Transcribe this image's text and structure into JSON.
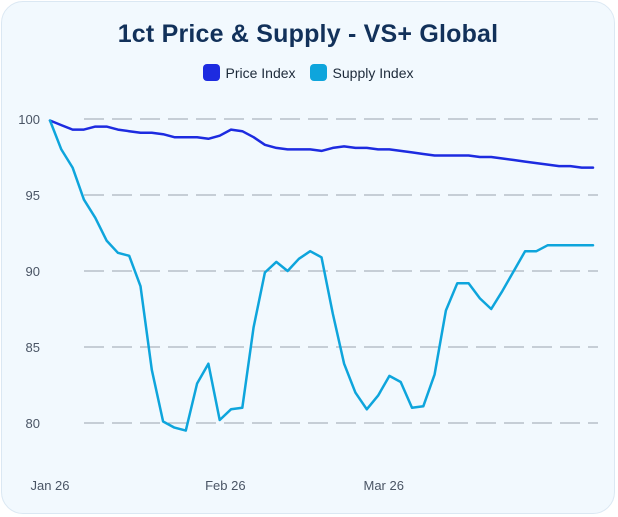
{
  "chart_data": {
    "type": "line",
    "title": "1ct Price & Supply - VS+ Global",
    "xlabel": "",
    "ylabel": "",
    "ylim": [
      78,
      100
    ],
    "yticks": [
      80,
      85,
      90,
      95,
      100
    ],
    "x_range": [
      0,
      96
    ],
    "xticks": [
      {
        "x": 0,
        "label": "Jan 26"
      },
      {
        "x": 31,
        "label": "Feb 26"
      },
      {
        "x": 59,
        "label": "Mar 26"
      }
    ],
    "grid": true,
    "legend_position": "top-center",
    "x": [
      0,
      2,
      4,
      6,
      8,
      10,
      12,
      14,
      16,
      18,
      20,
      22,
      24,
      26,
      28,
      30,
      32,
      34,
      36,
      38,
      40,
      42,
      44,
      46,
      48,
      50,
      52,
      54,
      56,
      58,
      60,
      62,
      64,
      66,
      68,
      70,
      72,
      74,
      76,
      78,
      80,
      82,
      84,
      86,
      88,
      90,
      92,
      94,
      96
    ],
    "series": [
      {
        "name": "Price Index",
        "color": "#1d2be0",
        "values": [
          99.9,
          99.6,
          99.3,
          99.3,
          99.5,
          99.5,
          99.3,
          99.2,
          99.1,
          99.1,
          99.0,
          98.8,
          98.8,
          98.8,
          98.7,
          98.9,
          99.3,
          99.2,
          98.8,
          98.3,
          98.1,
          98.0,
          98.0,
          98.0,
          97.9,
          98.1,
          98.2,
          98.1,
          98.1,
          98.0,
          98.0,
          97.9,
          97.8,
          97.7,
          97.6,
          97.6,
          97.6,
          97.6,
          97.5,
          97.5,
          97.4,
          97.3,
          97.2,
          97.1,
          97.0,
          96.9,
          96.9,
          96.8,
          96.8
        ]
      },
      {
        "name": "Supply Index",
        "color": "#0ea5dc",
        "values": [
          99.9,
          98.0,
          96.8,
          94.7,
          93.5,
          92.0,
          91.2,
          91.0,
          89.0,
          83.5,
          80.1,
          79.7,
          79.5,
          82.6,
          83.9,
          80.2,
          80.9,
          81.0,
          86.3,
          89.9,
          90.6,
          90.0,
          90.8,
          91.3,
          90.9,
          87.2,
          83.9,
          82.0,
          80.9,
          81.8,
          83.1,
          82.7,
          81.0,
          81.1,
          83.2,
          87.4,
          89.2,
          89.2,
          88.2,
          87.5,
          88.7,
          90.0,
          91.3,
          91.3,
          91.7,
          91.7,
          91.7,
          91.7,
          91.7
        ]
      }
    ]
  }
}
